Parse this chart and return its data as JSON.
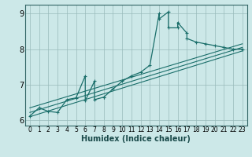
{
  "title": "",
  "xlabel": "Humidex (Indice chaleur)",
  "bg_color": "#cce8e8",
  "line_color": "#1a6e6a",
  "grid_color": "#99bbbb",
  "spine_color": "#336666",
  "xlim": [
    -0.5,
    23.5
  ],
  "ylim": [
    5.85,
    9.25
  ],
  "yticks": [
    6,
    7,
    8,
    9
  ],
  "xticks": [
    0,
    1,
    2,
    3,
    4,
    5,
    6,
    7,
    8,
    9,
    10,
    11,
    12,
    13,
    14,
    15,
    16,
    17,
    18,
    19,
    20,
    21,
    22,
    23
  ],
  "data_x": [
    0,
    1,
    2,
    3,
    4,
    5,
    6,
    6,
    7,
    7,
    8,
    8,
    9,
    10,
    11,
    12,
    13,
    14,
    14,
    15,
    15,
    16,
    16,
    17,
    17,
    18,
    19,
    20,
    21,
    22,
    23
  ],
  "data_y": [
    6.12,
    6.35,
    6.25,
    6.22,
    6.58,
    6.63,
    7.25,
    6.55,
    7.1,
    6.58,
    6.65,
    6.65,
    6.88,
    7.1,
    7.25,
    7.35,
    7.55,
    9.0,
    8.85,
    9.05,
    8.6,
    8.6,
    8.75,
    8.45,
    8.3,
    8.2,
    8.15,
    8.1,
    8.05,
    8.0,
    8.0
  ],
  "line1_x": [
    0,
    23
  ],
  "line1_y": [
    6.1,
    7.95
  ],
  "line2_x": [
    0,
    23
  ],
  "line2_y": [
    6.22,
    8.05
  ],
  "line3_x": [
    0,
    23
  ],
  "line3_y": [
    6.35,
    8.15
  ]
}
